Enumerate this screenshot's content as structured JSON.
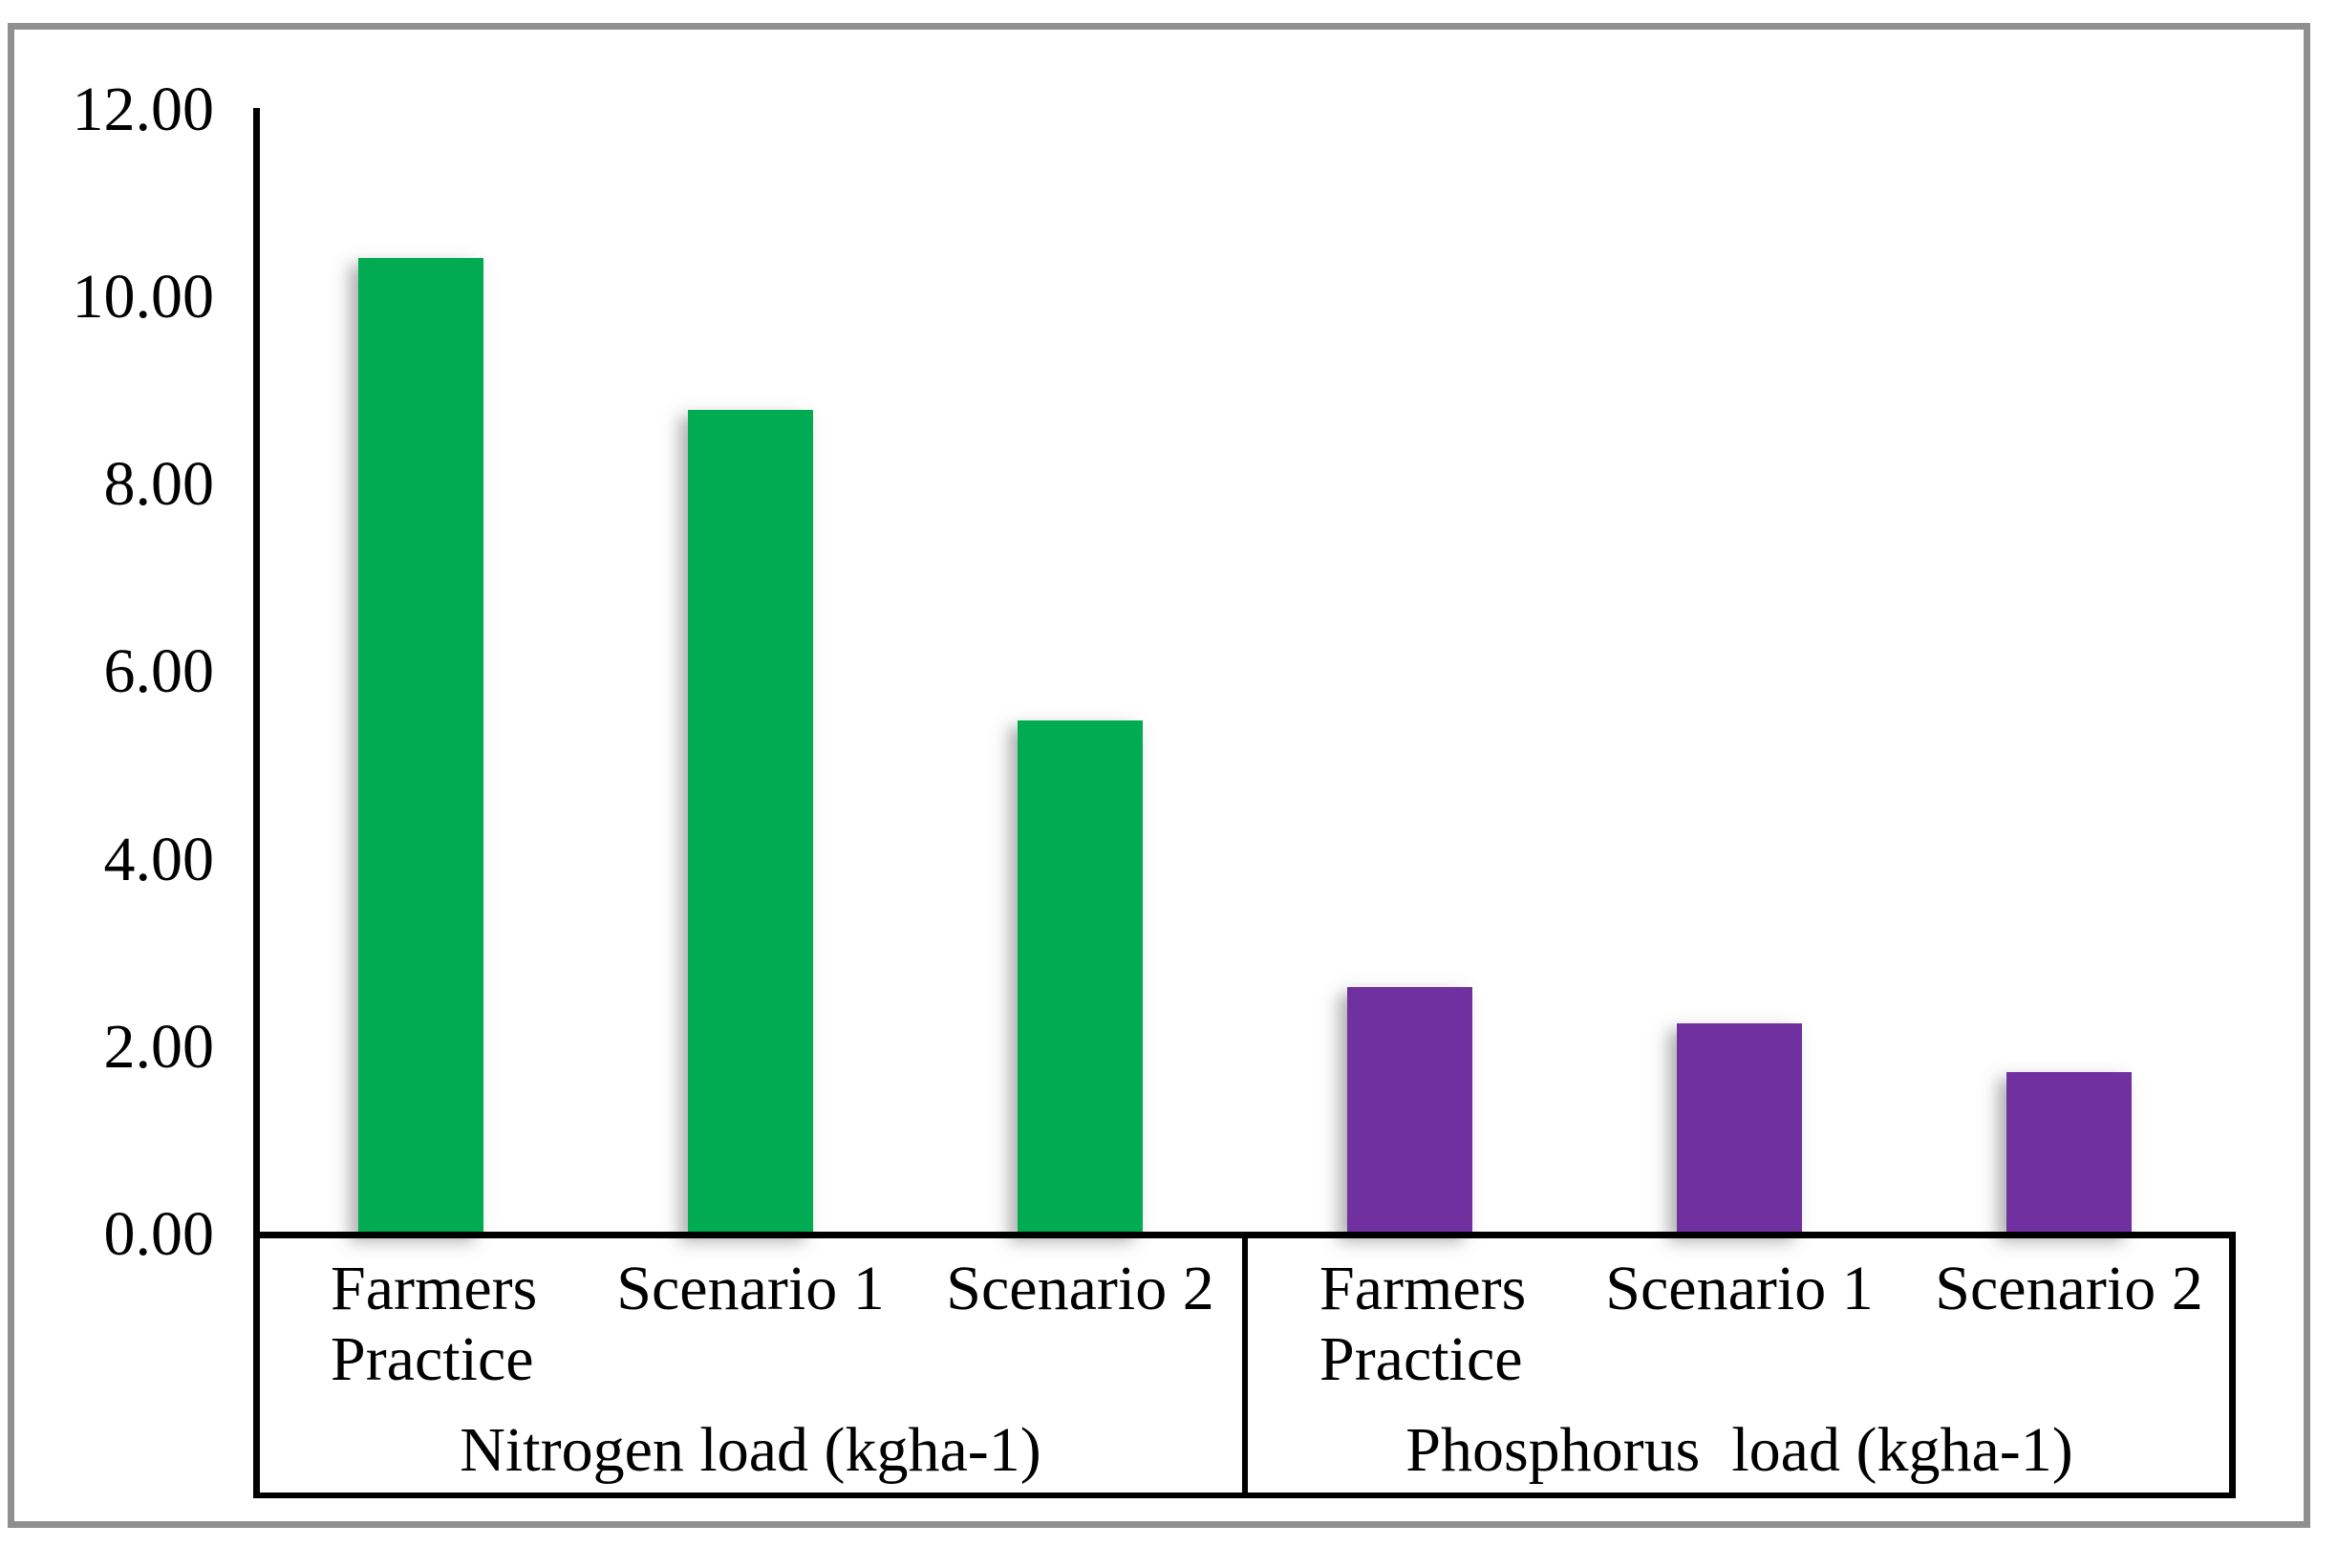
{
  "colors": {
    "nitrogen_bar": "#00AB52",
    "phosphorus_bar": "#7030A0",
    "axis_line": "#000000",
    "frame_border": "#8F8F8F",
    "background": "#FFFFFF"
  },
  "chart_data": {
    "type": "bar",
    "title": "",
    "xlabel": "",
    "ylabel": "",
    "ylim": [
      0,
      12
    ],
    "ytick_step": 2,
    "yticks": [
      "12.00",
      "10.00",
      "8.00",
      "6.00",
      "4.00",
      "2.00",
      "0.00"
    ],
    "grid": false,
    "legend": "none",
    "groups": [
      {
        "label": "Nitrogen load (kgha-1)",
        "color": "#00AB52",
        "categories": [
          "Farmers Practice",
          "Scenario 1",
          "Scenario 2"
        ],
        "values": [
          10.42,
          8.8,
          5.49
        ]
      },
      {
        "label": "Phosphorus  load (kgha-1)",
        "color": "#7030A0",
        "categories": [
          "Farmers Practice",
          "Scenario 1",
          "Scenario 2"
        ],
        "values": [
          2.64,
          2.25,
          1.73
        ]
      }
    ]
  }
}
